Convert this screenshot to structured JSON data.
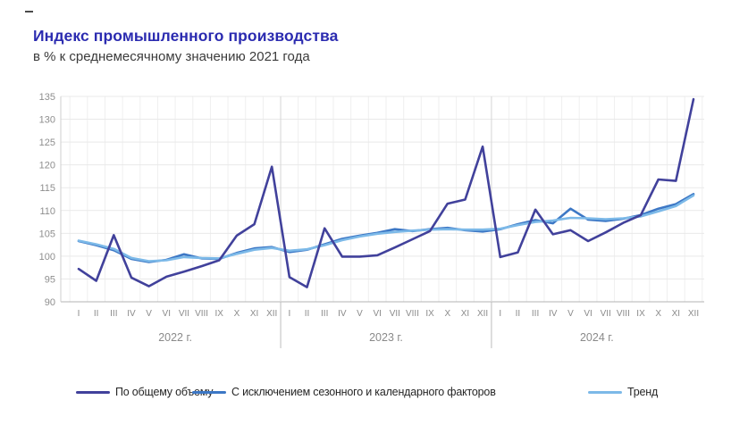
{
  "header": {
    "title": "Индекс промышленного производства",
    "subtitle": "в % к среднемесячному значению 2021 года",
    "title_color": "#2b2bb0"
  },
  "chart_data": {
    "type": "line",
    "title": "Индекс промышленного производства",
    "subtitle": "в % к среднемесячному значению 2021 года",
    "ylabel": "",
    "xlabel": "",
    "ylim": [
      90,
      135
    ],
    "y_ticks": [
      90,
      95,
      100,
      105,
      110,
      115,
      120,
      125,
      130,
      135
    ],
    "grid": true,
    "legend_position": "bottom",
    "month_labels": [
      "I",
      "II",
      "III",
      "IV",
      "V",
      "VI",
      "VII",
      "VIII",
      "IX",
      "X",
      "XI",
      "XII"
    ],
    "years": [
      {
        "label": "2022 г."
      },
      {
        "label": "2023 г."
      },
      {
        "label": "2024 г."
      }
    ],
    "series": [
      {
        "id": "total",
        "name": "По общему объему",
        "color": "#41419b",
        "values": [
          97.2,
          94.6,
          104.6,
          95.3,
          93.4,
          95.5,
          96.6,
          97.8,
          99.1,
          104.5,
          107.0,
          119.6,
          95.4,
          93.2,
          106.1,
          99.9,
          99.9,
          100.2,
          101.9,
          103.7,
          105.5,
          111.5,
          112.4,
          124.0,
          99.8,
          100.8,
          110.2,
          104.8,
          105.7,
          103.3,
          105.2,
          107.3,
          109.0,
          116.8,
          116.5,
          134.4
        ]
      },
      {
        "id": "seasonally-adjusted",
        "name": "С исключением сезонного и календарного факторов",
        "color": "#3c77c5",
        "values": [
          103.3,
          102.4,
          101.3,
          99.4,
          98.7,
          99.2,
          100.4,
          99.5,
          99.4,
          100.7,
          101.7,
          102.0,
          100.9,
          101.4,
          102.6,
          103.8,
          104.5,
          105.1,
          105.9,
          105.5,
          105.9,
          106.2,
          105.7,
          105.4,
          105.9,
          107.0,
          107.9,
          107.2,
          110.4,
          108.0,
          107.7,
          108.2,
          109.0,
          110.4,
          111.4,
          113.6
        ]
      },
      {
        "id": "trend",
        "name": "Тренд",
        "color": "#7cb9e8",
        "values": [
          103.4,
          102.6,
          101.6,
          99.6,
          98.9,
          99.1,
          99.8,
          99.6,
          99.5,
          100.5,
          101.4,
          101.8,
          101.2,
          101.5,
          102.4,
          103.5,
          104.3,
          104.9,
          105.3,
          105.6,
          105.8,
          105.9,
          105.8,
          105.8,
          106.0,
          106.8,
          107.5,
          107.8,
          108.4,
          108.3,
          108.1,
          108.3,
          108.7,
          109.8,
          111.0,
          113.3
        ]
      }
    ]
  },
  "legend": {
    "items": [
      {
        "label": "По общему объему"
      },
      {
        "label": "С исключением сезонного и календарного факторов"
      },
      {
        "label": "Тренд"
      }
    ]
  }
}
